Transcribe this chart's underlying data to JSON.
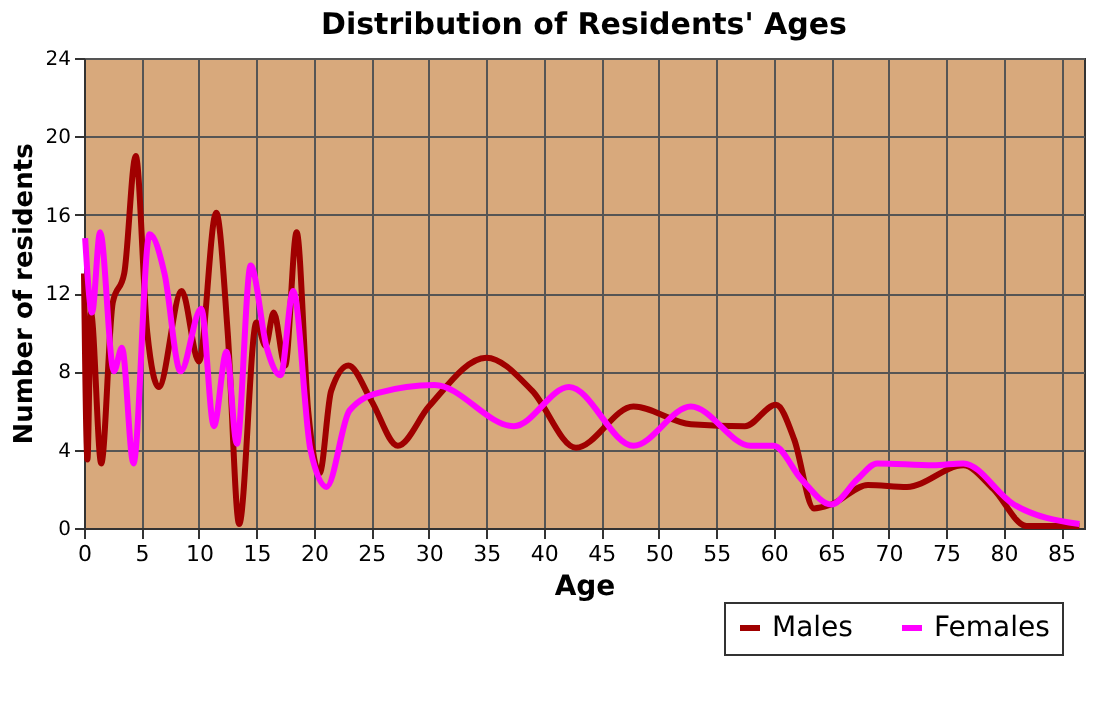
{
  "chart_data": {
    "type": "line",
    "title": "Distribution of Residents' Ages",
    "xlabel": "Age",
    "ylabel": "Number of residents",
    "xlim": [
      0,
      87
    ],
    "xticks": [
      0,
      5,
      10,
      15,
      20,
      25,
      30,
      35,
      40,
      45,
      50,
      55,
      60,
      65,
      70,
      75,
      80,
      85
    ],
    "ylim": [
      0,
      24
    ],
    "yticks": [
      0,
      4,
      8,
      12,
      16,
      20,
      24
    ],
    "grid": true,
    "legend": "bottom right",
    "line_style": "solid",
    "marker": "none",
    "series": [
      {
        "name": "Males",
        "color": "#a00000",
        "x": [
          0,
          0.3,
          0.6,
          1.5,
          2.5,
          3.5,
          4.5,
          5.5,
          6.5,
          8.5,
          10,
          11.5,
          12.5,
          13.5,
          15,
          15.8,
          16.5,
          17.5,
          18.5,
          19.5,
          20.5,
          21.5,
          23,
          25,
          27.3,
          30,
          35,
          39,
          42.8,
          47.8,
          52.8,
          57.5,
          60.2,
          61.8,
          63.5,
          65,
          68.2,
          71.6,
          76.5,
          79.1,
          82,
          86.6
        ],
        "values": [
          13,
          3.5,
          11,
          3.3,
          11.5,
          13,
          19,
          10,
          7.2,
          12.1,
          8.5,
          16.1,
          10,
          0.2,
          10.5,
          9.3,
          11,
          8.3,
          15.1,
          6,
          2.8,
          7,
          8.3,
          6.5,
          4.2,
          6.2,
          8.7,
          7,
          4.1,
          6.2,
          5.3,
          5.2,
          6.3,
          4.5,
          1,
          1.2,
          2.2,
          2.1,
          3.2,
          2,
          0.1,
          0.1
        ]
      },
      {
        "name": "Females",
        "color": "#ff00ff",
        "x": [
          0.1,
          0.7,
          1.4,
          2.6,
          3.3,
          4.3,
          5.7,
          7,
          8.4,
          10.2,
          11.3,
          12.4,
          13.3,
          14.5,
          15.9,
          17.1,
          18.2,
          19.7,
          21.1,
          23.1,
          25.6,
          30.5,
          37.4,
          42.2,
          47.8,
          52.8,
          58,
          60,
          62.4,
          65,
          67.3,
          69,
          73.9,
          76.5,
          80.9,
          86.6
        ],
        "values": [
          14.8,
          11,
          15.1,
          8,
          9.2,
          3.3,
          15,
          13,
          8,
          11.2,
          5.2,
          9,
          4.3,
          13.4,
          9.2,
          7.8,
          12.1,
          4,
          2.1,
          6,
          6.9,
          7.3,
          5.2,
          7.2,
          4.2,
          6.2,
          4.2,
          4.2,
          2.5,
          1.2,
          2.5,
          3.3,
          3.2,
          3.3,
          1.2,
          0.2
        ]
      }
    ]
  }
}
